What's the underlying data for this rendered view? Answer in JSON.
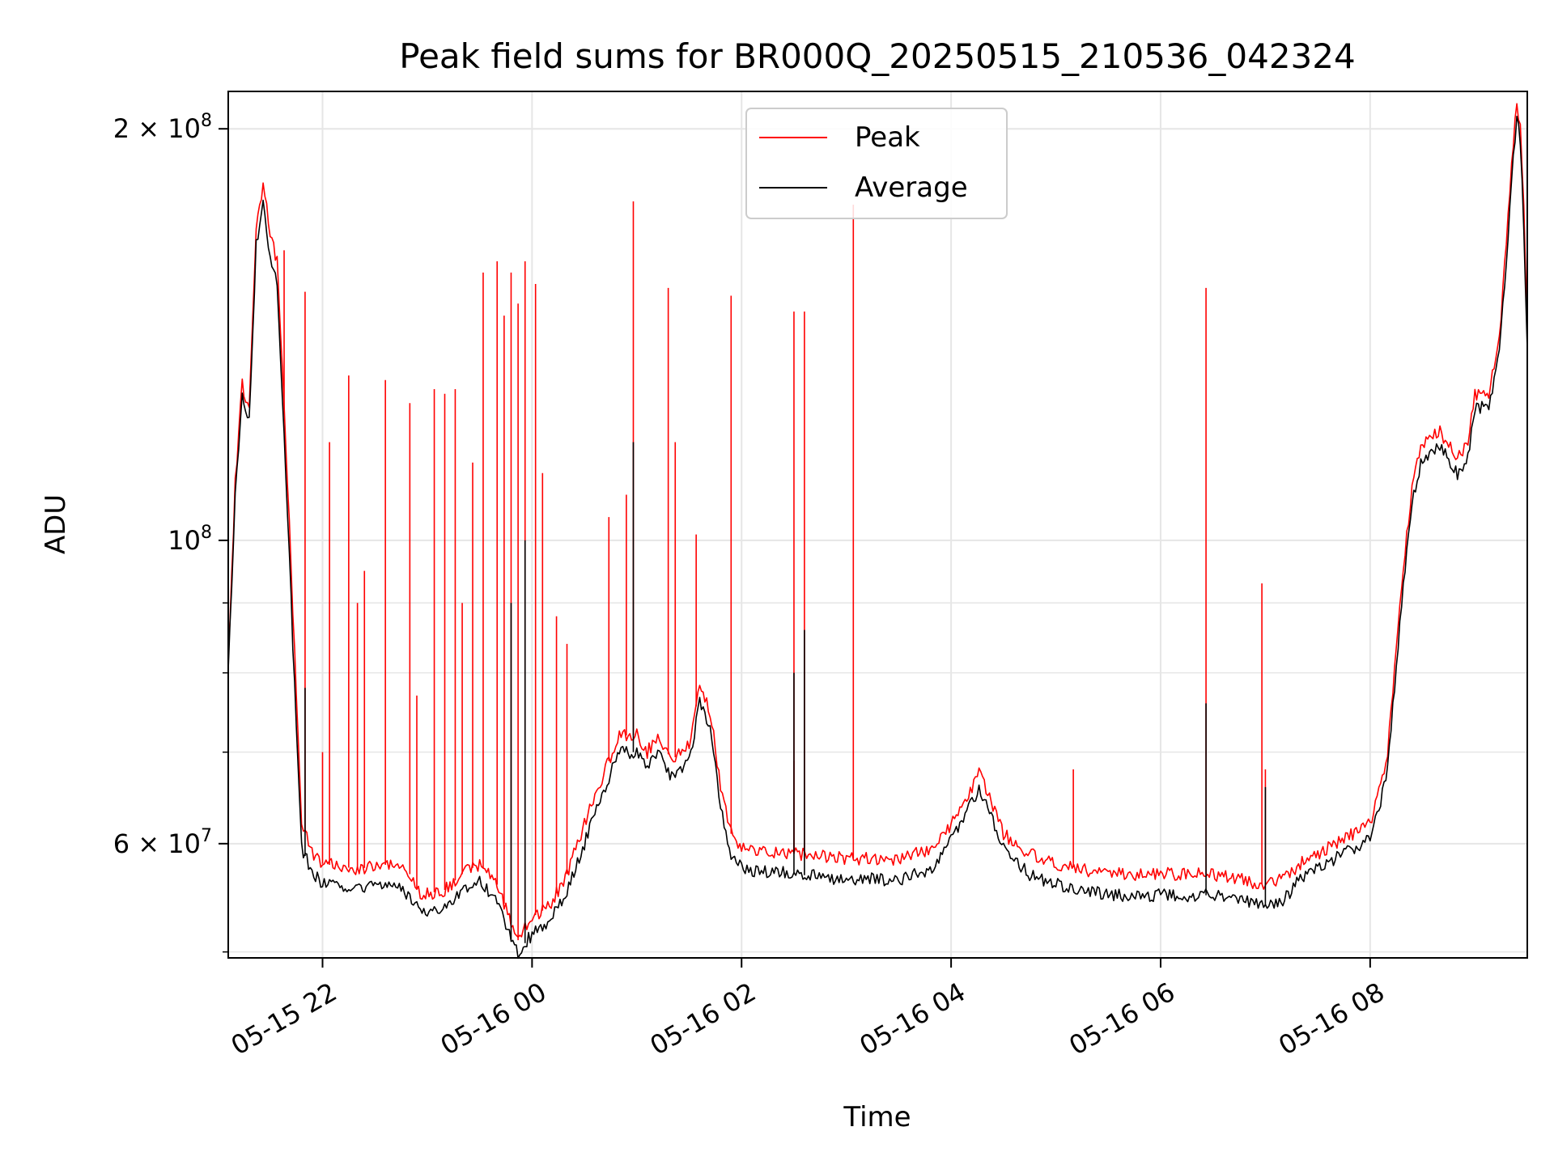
{
  "chart_data": {
    "type": "line",
    "title": "Peak field sums for BR000Q_20250515_210536_042324",
    "xlabel": "Time",
    "ylabel": "ADU",
    "yscale": "log",
    "grid": true,
    "legend_placement": "upper-center",
    "xlim": [
      "2025-05-15 21:06",
      "2025-05-16 09:30"
    ],
    "ylim": [
      49500000,
      213000000
    ],
    "x_ticks": [
      {
        "value": "2025-05-15 22:00",
        "label": "05-15 22"
      },
      {
        "value": "2025-05-16 00:00",
        "label": "05-16 00"
      },
      {
        "value": "2025-05-16 02:00",
        "label": "05-16 02"
      },
      {
        "value": "2025-05-16 04:00",
        "label": "05-16 04"
      },
      {
        "value": "2025-05-16 06:00",
        "label": "05-16 06"
      },
      {
        "value": "2025-05-16 08:00",
        "label": "05-16 08"
      }
    ],
    "y_ticks": [
      {
        "value": 60000000,
        "mantissa": "6",
        "exponent": "7"
      },
      {
        "value": 100000000,
        "mantissa": "",
        "exponent": "8"
      },
      {
        "value": 200000000,
        "mantissa": "2",
        "exponent": "8"
      }
    ],
    "y_minor_ticks": [
      50000000,
      70000000,
      80000000,
      90000000
    ],
    "series": [
      {
        "name": "Peak",
        "color": "#ff0000",
        "points": [
          [
            "2025-05-15 21:06",
            82000000
          ],
          [
            "2025-05-15 21:10",
            110000000
          ],
          [
            "2025-05-15 21:14",
            130000000
          ],
          [
            "2025-05-15 21:18",
            125000000
          ],
          [
            "2025-05-15 21:22",
            170000000
          ],
          [
            "2025-05-15 21:26",
            182000000
          ],
          [
            "2025-05-15 21:30",
            168000000
          ],
          [
            "2025-05-15 21:34",
            160000000
          ],
          [
            "2025-05-15 21:40",
            110000000
          ],
          [
            "2025-05-15 21:44",
            83000000
          ],
          [
            "2025-05-15 21:48",
            62000000
          ],
          [
            "2025-05-15 21:55",
            59000000
          ],
          [
            "2025-05-15 22:00",
            58000000
          ],
          [
            "2025-05-15 22:20",
            57500000
          ],
          [
            "2025-05-15 22:40",
            58000000
          ],
          [
            "2025-05-15 22:50",
            57000000
          ],
          [
            "2025-05-15 22:56",
            55000000
          ],
          [
            "2025-05-15 23:10",
            55500000
          ],
          [
            "2025-05-15 23:20",
            57000000
          ],
          [
            "2025-05-15 23:30",
            58000000
          ],
          [
            "2025-05-15 23:40",
            56000000
          ],
          [
            "2025-05-15 23:48",
            52500000
          ],
          [
            "2025-05-15 23:52",
            51000000
          ],
          [
            "2025-05-16 00:00",
            53000000
          ],
          [
            "2025-05-16 00:10",
            54000000
          ],
          [
            "2025-05-16 00:20",
            57000000
          ],
          [
            "2025-05-16 00:30",
            62000000
          ],
          [
            "2025-05-16 00:40",
            67000000
          ],
          [
            "2025-05-16 00:50",
            72000000
          ],
          [
            "2025-05-16 01:00",
            72000000
          ],
          [
            "2025-05-16 01:06",
            70000000
          ],
          [
            "2025-05-16 01:12",
            72000000
          ],
          [
            "2025-05-16 01:20",
            69000000
          ],
          [
            "2025-05-16 01:30",
            71000000
          ],
          [
            "2025-05-16 01:36",
            78000000
          ],
          [
            "2025-05-16 01:42",
            75000000
          ],
          [
            "2025-05-16 01:48",
            66000000
          ],
          [
            "2025-05-16 01:54",
            61000000
          ],
          [
            "2025-05-16 02:00",
            59500000
          ],
          [
            "2025-05-16 02:30",
            59000000
          ],
          [
            "2025-05-16 03:00",
            58500000
          ],
          [
            "2025-05-16 03:30",
            58500000
          ],
          [
            "2025-05-16 03:50",
            59500000
          ],
          [
            "2025-05-16 04:00",
            62000000
          ],
          [
            "2025-05-16 04:10",
            65000000
          ],
          [
            "2025-05-16 04:16",
            67500000
          ],
          [
            "2025-05-16 04:22",
            65000000
          ],
          [
            "2025-05-16 04:30",
            61000000
          ],
          [
            "2025-05-16 04:45",
            59000000
          ],
          [
            "2025-05-16 05:00",
            58000000
          ],
          [
            "2025-05-16 05:30",
            57000000
          ],
          [
            "2025-05-16 06:00",
            57000000
          ],
          [
            "2025-05-16 06:30",
            57000000
          ],
          [
            "2025-05-16 07:00",
            56000000
          ],
          [
            "2025-05-16 07:10",
            56500000
          ],
          [
            "2025-05-16 07:20",
            58000000
          ],
          [
            "2025-05-16 07:40",
            60000000
          ],
          [
            "2025-05-16 08:00",
            62000000
          ],
          [
            "2025-05-16 08:06",
            66000000
          ],
          [
            "2025-05-16 08:10",
            70000000
          ],
          [
            "2025-05-16 08:14",
            80000000
          ],
          [
            "2025-05-16 08:18",
            92000000
          ],
          [
            "2025-05-16 08:24",
            110000000
          ],
          [
            "2025-05-16 08:30",
            118000000
          ],
          [
            "2025-05-16 08:40",
            120000000
          ],
          [
            "2025-05-16 08:50",
            115000000
          ],
          [
            "2025-05-16 08:56",
            118000000
          ],
          [
            "2025-05-16 09:00",
            128000000
          ],
          [
            "2025-05-16 09:08",
            128000000
          ],
          [
            "2025-05-16 09:14",
            140000000
          ],
          [
            "2025-05-16 09:18",
            165000000
          ],
          [
            "2025-05-16 09:22",
            195000000
          ],
          [
            "2025-05-16 09:24",
            210000000
          ],
          [
            "2025-05-16 09:26",
            200000000
          ],
          [
            "2025-05-16 09:28",
            175000000
          ],
          [
            "2025-05-16 09:30",
            142000000
          ]
        ],
        "spikes": [
          [
            "2025-05-15 21:38",
            163000000
          ],
          [
            "2025-05-15 21:50",
            152000000
          ],
          [
            "2025-05-15 22:00",
            70000000
          ],
          [
            "2025-05-15 22:04",
            118000000
          ],
          [
            "2025-05-15 22:15",
            132000000
          ],
          [
            "2025-05-15 22:20",
            90000000
          ],
          [
            "2025-05-15 22:24",
            95000000
          ],
          [
            "2025-05-15 22:36",
            131000000
          ],
          [
            "2025-05-15 22:50",
            126000000
          ],
          [
            "2025-05-15 22:54",
            77000000
          ],
          [
            "2025-05-15 23:04",
            129000000
          ],
          [
            "2025-05-15 23:10",
            128000000
          ],
          [
            "2025-05-15 23:16",
            129000000
          ],
          [
            "2025-05-15 23:20",
            90000000
          ],
          [
            "2025-05-15 23:26",
            114000000
          ],
          [
            "2025-05-15 23:32",
            157000000
          ],
          [
            "2025-05-15 23:40",
            160000000
          ],
          [
            "2025-05-15 23:44",
            146000000
          ],
          [
            "2025-05-15 23:48",
            157000000
          ],
          [
            "2025-05-15 23:52",
            149000000
          ],
          [
            "2025-05-15 23:56",
            160000000
          ],
          [
            "2025-05-16 00:02",
            154000000
          ],
          [
            "2025-05-16 00:06",
            112000000
          ],
          [
            "2025-05-16 00:14",
            88000000
          ],
          [
            "2025-05-16 00:20",
            84000000
          ],
          [
            "2025-05-16 00:44",
            104000000
          ],
          [
            "2025-05-16 00:54",
            108000000
          ],
          [
            "2025-05-16 00:58",
            177000000
          ],
          [
            "2025-05-16 01:18",
            153000000
          ],
          [
            "2025-05-16 01:22",
            118000000
          ],
          [
            "2025-05-16 01:34",
            101000000
          ],
          [
            "2025-05-16 01:54",
            151000000
          ],
          [
            "2025-05-16 02:30",
            69000000
          ],
          [
            "2025-05-16 02:30",
            147000000
          ],
          [
            "2025-05-16 02:36",
            147000000
          ],
          [
            "2025-05-16 03:04",
            176000000
          ],
          [
            "2025-05-16 05:10",
            68000000
          ],
          [
            "2025-05-16 06:26",
            153000000
          ],
          [
            "2025-05-16 06:58",
            93000000
          ],
          [
            "2025-05-16 07:00",
            68000000
          ]
        ]
      },
      {
        "name": "Average",
        "color": "#000000",
        "points": [
          [
            "2025-05-15 21:06",
            80000000
          ],
          [
            "2025-05-15 21:10",
            108000000
          ],
          [
            "2025-05-15 21:14",
            128000000
          ],
          [
            "2025-05-15 21:18",
            122000000
          ],
          [
            "2025-05-15 21:22",
            165000000
          ],
          [
            "2025-05-15 21:26",
            176000000
          ],
          [
            "2025-05-15 21:30",
            162000000
          ],
          [
            "2025-05-15 21:34",
            155000000
          ],
          [
            "2025-05-15 21:40",
            105000000
          ],
          [
            "2025-05-15 21:44",
            78000000
          ],
          [
            "2025-05-15 21:48",
            59500000
          ],
          [
            "2025-05-15 21:55",
            57000000
          ],
          [
            "2025-05-15 22:00",
            56000000
          ],
          [
            "2025-05-15 22:20",
            55500000
          ],
          [
            "2025-05-15 22:40",
            56000000
          ],
          [
            "2025-05-15 22:50",
            55000000
          ],
          [
            "2025-05-15 22:56",
            53500000
          ],
          [
            "2025-05-15 23:10",
            54000000
          ],
          [
            "2025-05-15 23:20",
            55500000
          ],
          [
            "2025-05-15 23:30",
            56500000
          ],
          [
            "2025-05-15 23:40",
            54500000
          ],
          [
            "2025-05-15 23:48",
            51000000
          ],
          [
            "2025-05-15 23:52",
            50000000
          ],
          [
            "2025-05-16 00:00",
            51500000
          ],
          [
            "2025-05-16 00:10",
            52500000
          ],
          [
            "2025-05-16 00:20",
            55500000
          ],
          [
            "2025-05-16 00:30",
            60000000
          ],
          [
            "2025-05-16 00:40",
            65000000
          ],
          [
            "2025-05-16 00:50",
            70000000
          ],
          [
            "2025-05-16 01:00",
            70000000
          ],
          [
            "2025-05-16 01:06",
            68000000
          ],
          [
            "2025-05-16 01:12",
            70000000
          ],
          [
            "2025-05-16 01:20",
            67000000
          ],
          [
            "2025-05-16 01:30",
            69000000
          ],
          [
            "2025-05-16 01:36",
            76000000
          ],
          [
            "2025-05-16 01:42",
            73000000
          ],
          [
            "2025-05-16 01:48",
            64000000
          ],
          [
            "2025-05-16 01:54",
            59000000
          ],
          [
            "2025-05-16 02:00",
            57500000
          ],
          [
            "2025-05-16 02:30",
            57000000
          ],
          [
            "2025-05-16 03:00",
            56500000
          ],
          [
            "2025-05-16 03:30",
            56500000
          ],
          [
            "2025-05-16 03:50",
            57500000
          ],
          [
            "2025-05-16 04:00",
            60500000
          ],
          [
            "2025-05-16 04:10",
            63500000
          ],
          [
            "2025-05-16 04:16",
            66000000
          ],
          [
            "2025-05-16 04:22",
            63500000
          ],
          [
            "2025-05-16 04:30",
            59500000
          ],
          [
            "2025-05-16 04:45",
            57000000
          ],
          [
            "2025-05-16 05:00",
            56000000
          ],
          [
            "2025-05-16 05:30",
            55000000
          ],
          [
            "2025-05-16 06:00",
            55000000
          ],
          [
            "2025-05-16 06:30",
            55000000
          ],
          [
            "2025-05-16 07:00",
            54000000
          ],
          [
            "2025-05-16 07:10",
            54500000
          ],
          [
            "2025-05-16 07:20",
            56500000
          ],
          [
            "2025-05-16 07:40",
            58500000
          ],
          [
            "2025-05-16 08:00",
            60500000
          ],
          [
            "2025-05-16 08:06",
            64500000
          ],
          [
            "2025-05-16 08:10",
            68000000
          ],
          [
            "2025-05-16 08:14",
            78000000
          ],
          [
            "2025-05-16 08:18",
            90000000
          ],
          [
            "2025-05-16 08:24",
            107000000
          ],
          [
            "2025-05-16 08:30",
            115000000
          ],
          [
            "2025-05-16 08:40",
            117000000
          ],
          [
            "2025-05-16 08:50",
            112000000
          ],
          [
            "2025-05-16 08:56",
            115000000
          ],
          [
            "2025-05-16 09:00",
            125000000
          ],
          [
            "2025-05-16 09:08",
            125000000
          ],
          [
            "2025-05-16 09:14",
            137000000
          ],
          [
            "2025-05-16 09:18",
            160000000
          ],
          [
            "2025-05-16 09:22",
            190000000
          ],
          [
            "2025-05-16 09:24",
            205000000
          ],
          [
            "2025-05-16 09:26",
            195000000
          ],
          [
            "2025-05-16 09:28",
            170000000
          ],
          [
            "2025-05-16 09:30",
            138000000
          ]
        ],
        "spikes": [
          [
            "2025-05-15 21:50",
            78000000
          ],
          [
            "2025-05-15 23:48",
            90000000
          ],
          [
            "2025-05-15 23:56",
            100000000
          ],
          [
            "2025-05-16 00:58",
            118000000
          ],
          [
            "2025-05-16 02:30",
            80000000
          ],
          [
            "2025-05-16 02:36",
            86000000
          ],
          [
            "2025-05-16 06:26",
            76000000
          ],
          [
            "2025-05-16 07:00",
            66000000
          ]
        ]
      }
    ]
  }
}
